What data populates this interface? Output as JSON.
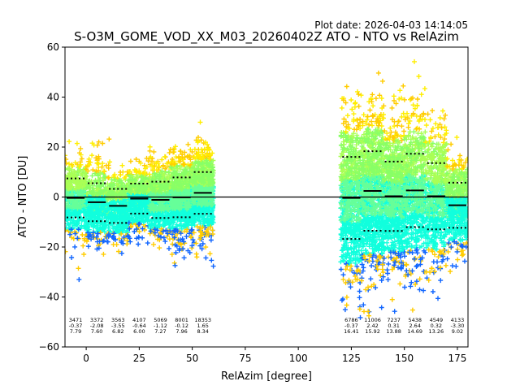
{
  "plot_date": "Plot date: 2026-04-03 14:14:05",
  "chart_data": {
    "type": "scatter",
    "title": "S-O3M_GOME_VOD_XX_M03_20260402Z ATO - NTO vs RelAzim",
    "xlabel": "RelAzim [degree]",
    "ylabel": "ATO - NTO [DU]",
    "xlim": [
      -10,
      180
    ],
    "ylim": [
      -60,
      60
    ],
    "xticks": [
      0,
      25,
      50,
      75,
      100,
      125,
      150,
      175
    ],
    "yticks": [
      -60,
      -40,
      -20,
      0,
      20,
      40,
      60
    ],
    "grid": false,
    "zero_line": 0,
    "point_colors": [
      "#aaff55",
      "#66ff99",
      "#11ffdd",
      "#ffee00",
      "#ffcc00",
      "#1166ff",
      "#0000dd",
      "#88ff66"
    ],
    "bins": [
      {
        "x": [
          -10,
          0
        ],
        "mean": -0.37,
        "std": 7.79,
        "count": "3471",
        "mean_label": "-0.37",
        "std_label": "7.79"
      },
      {
        "x": [
          0,
          10
        ],
        "mean": -2.08,
        "std": 7.6,
        "count": "3372",
        "mean_label": "-2.08",
        "std_label": "7.60"
      },
      {
        "x": [
          10,
          20
        ],
        "mean": -3.55,
        "std": 6.82,
        "count": "3563",
        "mean_label": "-3.55",
        "std_label": "6.82"
      },
      {
        "x": [
          20,
          30
        ],
        "mean": -0.64,
        "std": 6.0,
        "count": "4107",
        "mean_label": "-0.64",
        "std_label": "6.00"
      },
      {
        "x": [
          30,
          40
        ],
        "mean": -1.12,
        "std": 7.27,
        "count": "5069",
        "mean_label": "-1.12",
        "std_label": "7.27"
      },
      {
        "x": [
          40,
          50
        ],
        "mean": -0.12,
        "std": 7.96,
        "count": "8001",
        "mean_label": "-0.12",
        "std_label": "7.96"
      },
      {
        "x": [
          50,
          60
        ],
        "mean": 1.65,
        "std": 8.34,
        "count": "18353",
        "mean_label": "1.65",
        "std_label": "8.34"
      },
      {
        "x": [
          120,
          130
        ],
        "mean": -0.37,
        "std": 16.41,
        "count": "6786",
        "mean_label": "-0.37",
        "std_label": "16.41"
      },
      {
        "x": [
          130,
          140
        ],
        "mean": 2.42,
        "std": 15.92,
        "count": "11006",
        "mean_label": "2.42",
        "std_label": "15.92"
      },
      {
        "x": [
          140,
          150
        ],
        "mean": 0.31,
        "std": 13.88,
        "count": "7237",
        "mean_label": "0.31",
        "std_label": "13.88"
      },
      {
        "x": [
          150,
          160
        ],
        "mean": 2.64,
        "std": 14.69,
        "count": "5438",
        "mean_label": "2.64",
        "std_label": "14.69"
      },
      {
        "x": [
          160,
          170
        ],
        "mean": 0.32,
        "std": 13.26,
        "count": "4549",
        "mean_label": "0.32",
        "std_label": "13.26"
      },
      {
        "x": [
          170,
          180
        ],
        "mean": -3.3,
        "std": 9.02,
        "count": "4133",
        "mean_label": "-3.30",
        "std_label": "9.02"
      }
    ]
  }
}
